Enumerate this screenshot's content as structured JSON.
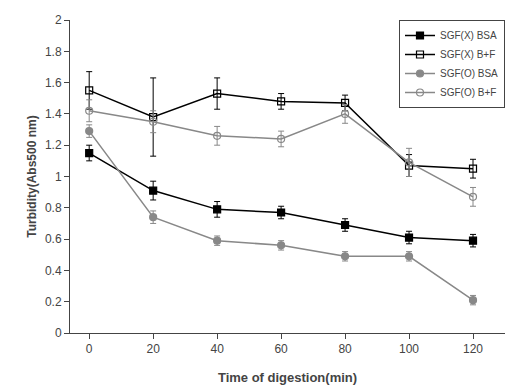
{
  "chart_data": {
    "type": "line",
    "xlabel": "Time of digestion(min)",
    "ylabel": "Turbidity(Abs500 nm)",
    "x": [
      0,
      20,
      40,
      60,
      80,
      100,
      120
    ],
    "series": [
      {
        "name": "SGF(X) BSA",
        "color": "#000000",
        "marker": "square",
        "line_style": "solid",
        "values": [
          1.15,
          0.91,
          0.79,
          0.77,
          0.69,
          0.61,
          0.59
        ],
        "yerr": [
          0.05,
          0.06,
          0.05,
          0.04,
          0.04,
          0.04,
          0.04
        ]
      },
      {
        "name": "SGF(X) B+F",
        "color": "#000000",
        "marker": "square-open",
        "line_style": "solid",
        "values": [
          1.55,
          1.38,
          1.53,
          1.48,
          1.47,
          1.07,
          1.05
        ],
        "yerr": [
          0.12,
          0.25,
          0.1,
          0.05,
          0.05,
          0.07,
          0.06
        ]
      },
      {
        "name": "SGF(O) BSA",
        "color": "#888888",
        "marker": "circle",
        "line_style": "solid",
        "values": [
          1.29,
          0.74,
          0.59,
          0.56,
          0.49,
          0.49,
          0.21
        ],
        "yerr": [
          0.04,
          0.04,
          0.03,
          0.03,
          0.03,
          0.03,
          0.03
        ]
      },
      {
        "name": "SGF(O) B+F",
        "color": "#888888",
        "marker": "circle-open",
        "line_style": "solid",
        "values": [
          1.42,
          1.35,
          1.26,
          1.24,
          1.4,
          1.09,
          0.87
        ],
        "yerr": [
          0.07,
          0.07,
          0.06,
          0.05,
          0.06,
          0.09,
          0.06
        ]
      }
    ],
    "xlim": [
      -6,
      130
    ],
    "xticks": [
      0,
      20,
      40,
      60,
      80,
      100,
      120
    ],
    "ylim": [
      0.0,
      2.0
    ],
    "yticks": [
      0.0,
      0.2,
      0.4,
      0.6,
      0.8,
      1.0,
      1.2,
      1.4,
      1.6,
      1.8,
      2.0
    ],
    "grid": false,
    "legend": "upper right"
  }
}
